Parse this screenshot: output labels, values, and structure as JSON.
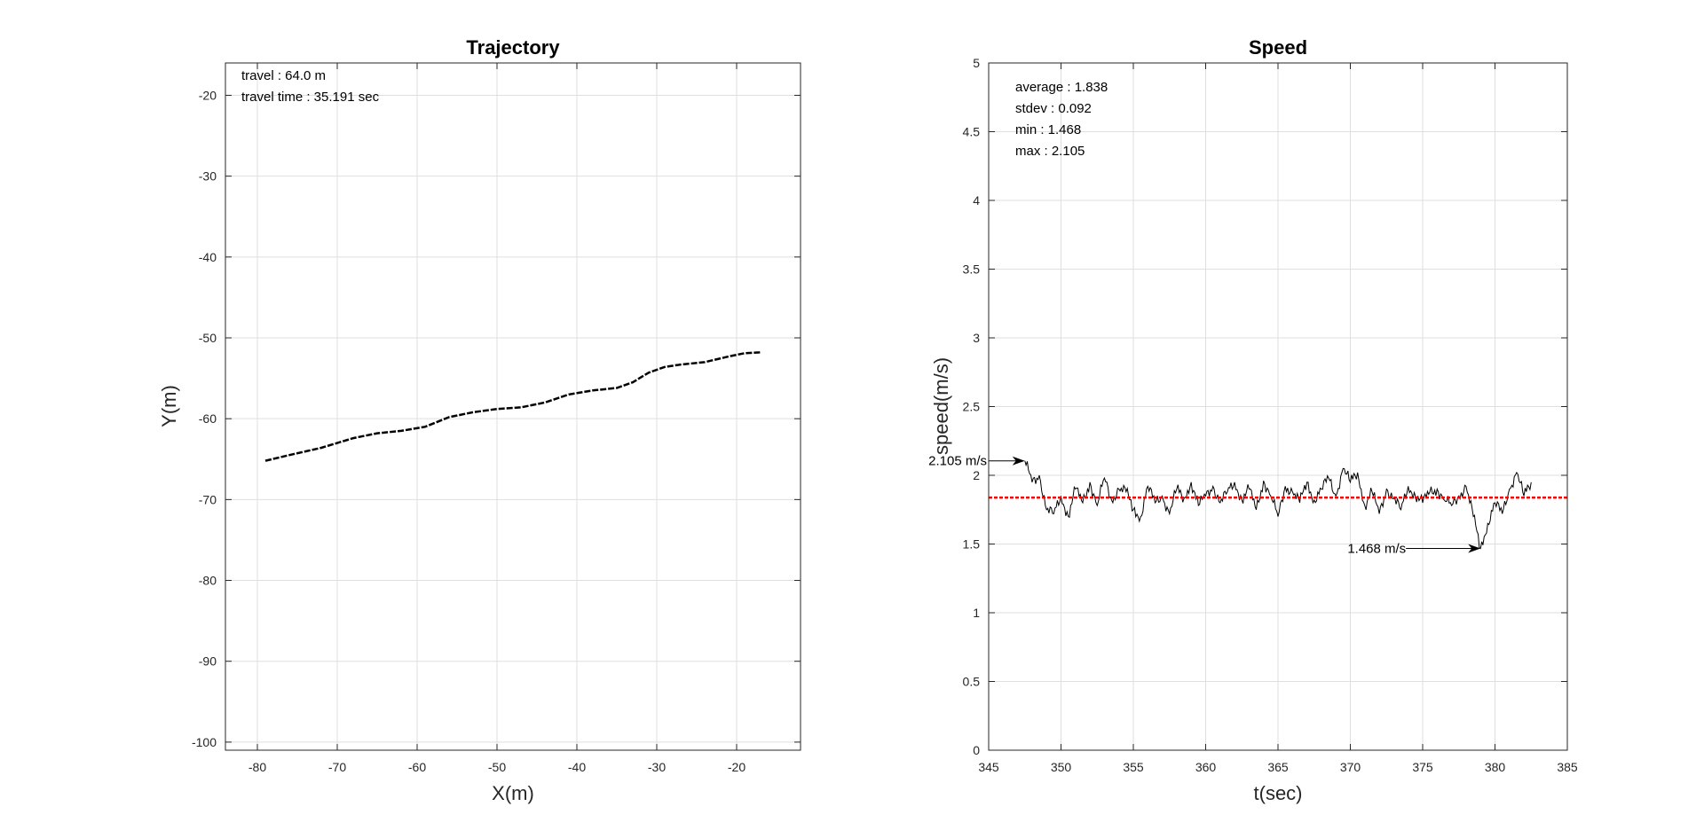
{
  "chart_data": [
    {
      "type": "line",
      "title": "Trajectory",
      "xlabel": "X(m)",
      "ylabel": "Y(m)",
      "xlim": [
        -84,
        -12
      ],
      "ylim": [
        -101,
        -16
      ],
      "xticks": [
        -80,
        -70,
        -60,
        -50,
        -40,
        -30,
        -20
      ],
      "yticks": [
        -20,
        -30,
        -40,
        -50,
        -60,
        -70,
        -80,
        -90,
        -100
      ],
      "grid": true,
      "annotations": [
        "travel : 64.0 m",
        "travel time : 35.191 sec"
      ],
      "series": [
        {
          "name": "trajectory",
          "style": "dashed",
          "color": "#000000",
          "x": [
            -79,
            -76,
            -72,
            -68,
            -65,
            -62,
            -59,
            -56,
            -53,
            -50,
            -47,
            -44,
            -41,
            -38,
            -35,
            -33,
            -31,
            -29,
            -27,
            -24,
            -21,
            -19,
            -17
          ],
          "y": [
            -65.2,
            -64.5,
            -63.6,
            -62.4,
            -61.8,
            -61.5,
            -61.0,
            -59.8,
            -59.2,
            -58.8,
            -58.6,
            -58.0,
            -57.0,
            -56.5,
            -56.2,
            -55.5,
            -54.3,
            -53.6,
            -53.3,
            -53.0,
            -52.3,
            -51.9,
            -51.8
          ]
        }
      ]
    },
    {
      "type": "line",
      "title": "Speed",
      "xlabel": "t(sec)",
      "ylabel": "speed(m/s)",
      "xlim": [
        345,
        385
      ],
      "ylim": [
        0,
        5
      ],
      "xticks": [
        345,
        350,
        355,
        360,
        365,
        370,
        375,
        380,
        385
      ],
      "yticks": [
        0,
        0.5,
        1,
        1.5,
        2,
        2.5,
        3,
        3.5,
        4,
        4.5,
        5
      ],
      "grid": true,
      "annotations": [
        "average : 1.838",
        "stdev : 0.092",
        "min : 1.468",
        "max : 2.105"
      ],
      "max_label": "2.105 m/s",
      "min_label": "1.468 m/s",
      "max_point": [
        347.5,
        2.105
      ],
      "min_point": [
        379.0,
        1.468
      ],
      "average": 1.838,
      "average_color": "#ff0000",
      "series": [
        {
          "name": "speed",
          "color": "#000000",
          "x": [
            347.5,
            348.0,
            348.5,
            349.0,
            349.5,
            350.0,
            350.5,
            351.0,
            351.5,
            352.0,
            352.5,
            353.0,
            353.5,
            354.0,
            354.5,
            355.0,
            355.5,
            356.0,
            356.5,
            357.0,
            357.5,
            358.0,
            358.5,
            359.0,
            359.5,
            360.0,
            360.5,
            361.0,
            361.5,
            362.0,
            362.5,
            363.0,
            363.5,
            364.0,
            364.5,
            365.0,
            365.5,
            366.0,
            366.5,
            367.0,
            367.5,
            368.0,
            368.5,
            369.0,
            369.5,
            370.0,
            370.5,
            371.0,
            371.5,
            372.0,
            372.5,
            373.0,
            373.5,
            374.0,
            374.5,
            375.0,
            375.5,
            376.0,
            376.5,
            377.0,
            377.5,
            378.0,
            378.5,
            379.0,
            379.5,
            380.0,
            380.5,
            381.0,
            381.5,
            382.0,
            382.5
          ],
          "y": [
            2.105,
            1.95,
            2.0,
            1.75,
            1.72,
            1.85,
            1.7,
            1.9,
            1.8,
            1.95,
            1.78,
            1.98,
            1.82,
            1.9,
            1.88,
            1.75,
            1.7,
            1.92,
            1.8,
            1.85,
            1.72,
            1.9,
            1.83,
            1.95,
            1.78,
            1.85,
            1.92,
            1.8,
            1.88,
            1.95,
            1.82,
            1.9,
            1.75,
            1.96,
            1.85,
            1.7,
            1.92,
            1.88,
            1.8,
            1.95,
            1.82,
            1.9,
            1.98,
            1.85,
            2.05,
            1.95,
            2.02,
            1.78,
            1.88,
            1.72,
            1.9,
            1.83,
            1.75,
            1.92,
            1.85,
            1.8,
            1.88,
            1.9,
            1.82,
            1.78,
            1.85,
            1.92,
            1.7,
            1.468,
            1.65,
            1.8,
            1.72,
            1.9,
            2.02,
            1.85,
            1.95
          ]
        }
      ]
    }
  ]
}
